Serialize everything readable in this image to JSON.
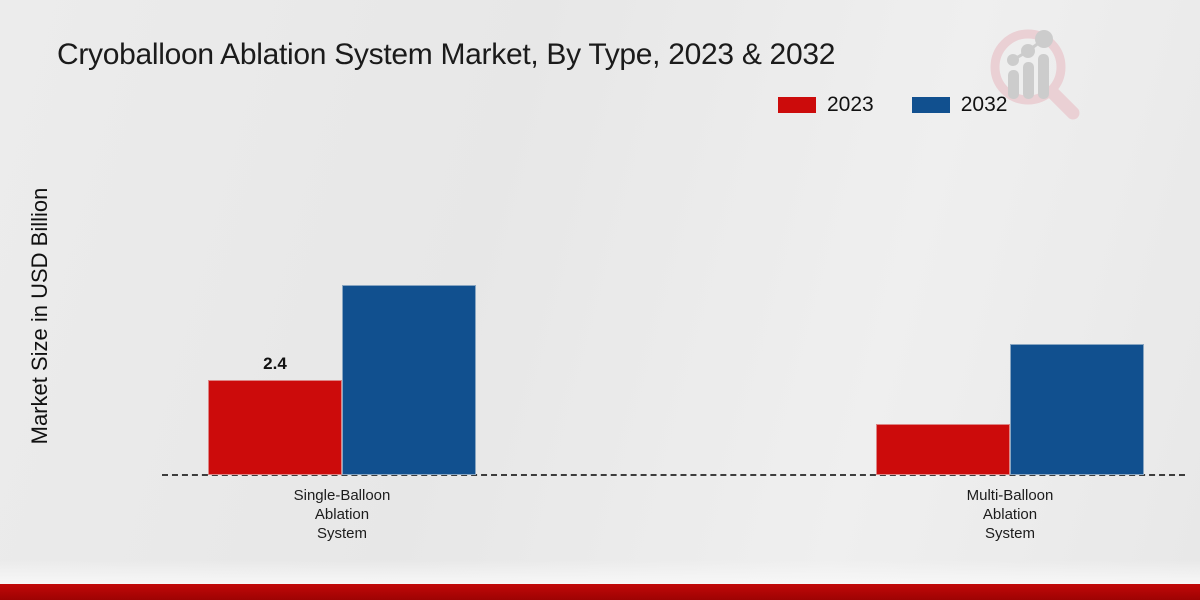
{
  "page": {
    "title": "Cryoballoon Ablation System Market, By Type, 2023 & 2032"
  },
  "chart_data": {
    "type": "bar",
    "title": "Cryoballoon Ablation System Market, By Type, 2023 & 2032",
    "ylabel": "Market Size in USD Billion",
    "xlabel": "",
    "categories": [
      "Single-Balloon Ablation System",
      "Multi-Balloon Ablation System"
    ],
    "series": [
      {
        "name": "2023",
        "color": "#cc0b0b",
        "values": [
          2.4,
          1.3
        ],
        "data_labels": [
          "2.4",
          ""
        ]
      },
      {
        "name": "2032",
        "color": "#11508f",
        "values": [
          4.8,
          3.3
        ],
        "data_labels": [
          "",
          ""
        ]
      }
    ],
    "ylim": [
      0,
      5.2
    ],
    "grid": false,
    "legend_position": "top-right",
    "baseline_style": "dashed"
  },
  "legend": {
    "items": [
      {
        "label": "2023",
        "color": "#cc0b0b"
      },
      {
        "label": "2032",
        "color": "#11508f"
      }
    ]
  },
  "branding": {
    "logo_name": "magnifier-bar-chart-logo",
    "bottom_bar_color": "#b40606"
  }
}
